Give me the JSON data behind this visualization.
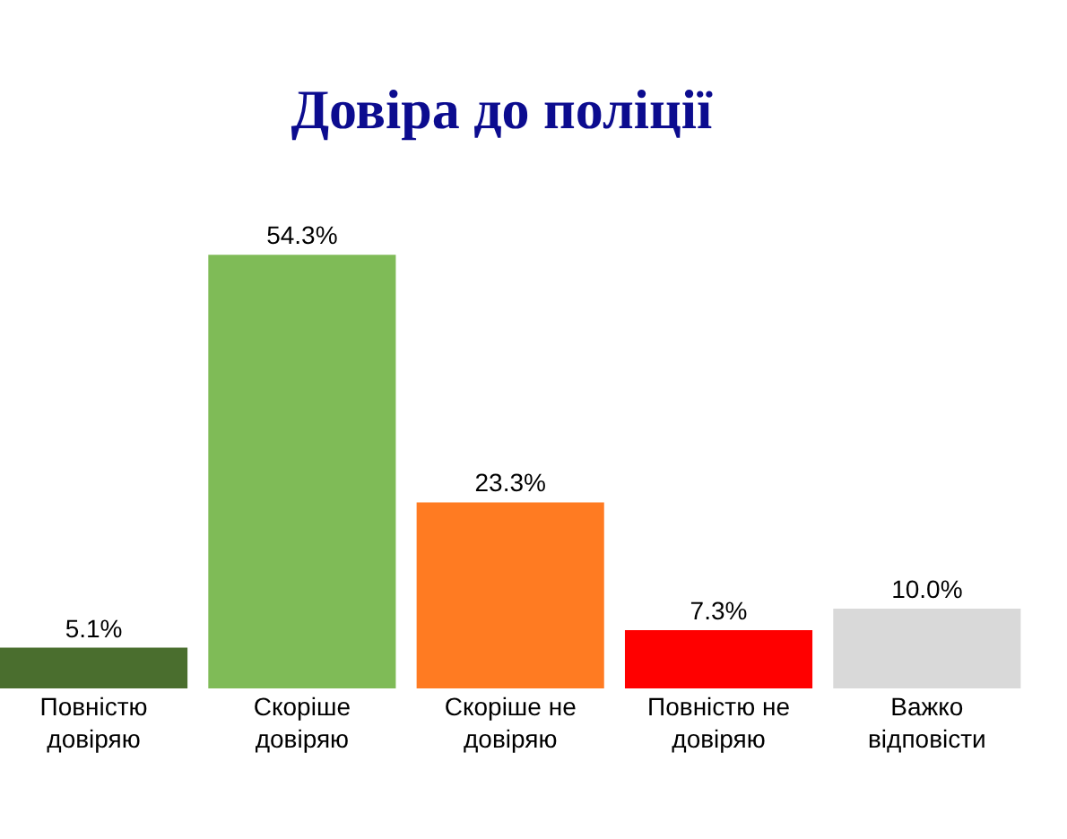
{
  "chart_data": {
    "type": "bar",
    "title": "Довіра до поліції",
    "categories": [
      "Повністю довіряю",
      "Скоріше довіряю",
      "Скоріше не довіряю",
      "Повністю не довіряю",
      "Важко відповісти"
    ],
    "values": [
      5.1,
      54.3,
      23.3,
      7.3,
      10.0
    ],
    "value_labels": [
      "5.1%",
      "54.3%",
      "23.3%",
      "7.3%",
      "10.0%"
    ],
    "colors": [
      "#4a6e2e",
      "#7fbb57",
      "#ff7b22",
      "#ff0000",
      "#d9d9d9"
    ]
  }
}
